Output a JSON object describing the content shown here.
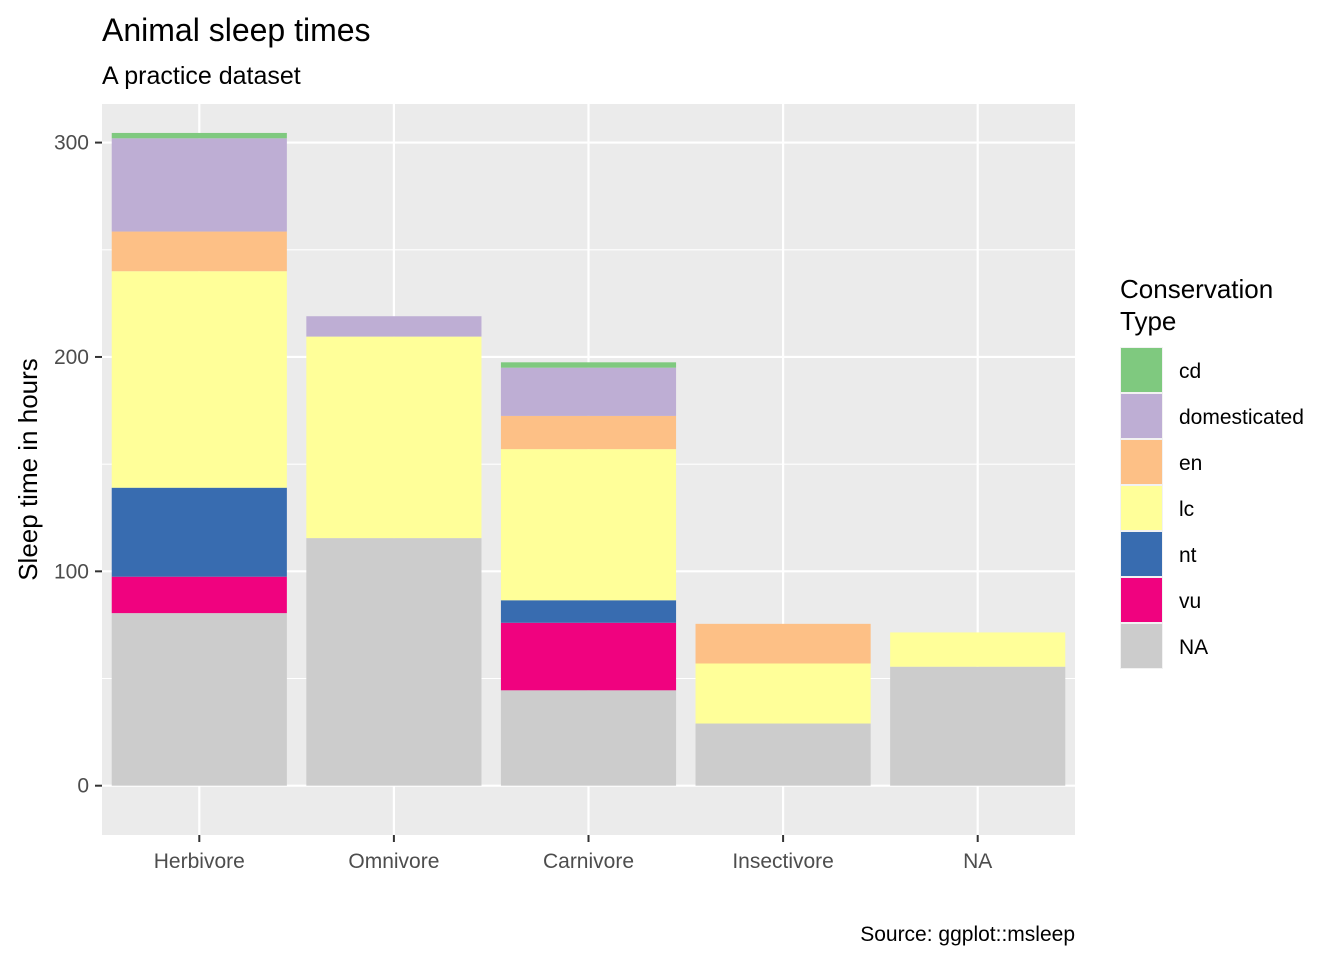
{
  "chart_data": {
    "type": "bar",
    "stacked": true,
    "title": "Animal sleep times",
    "subtitle": "A practice dataset",
    "caption": "Source: ggplot::msleep",
    "xlabel": "",
    "ylabel": "Sleep time in hours",
    "ylim": [
      -23,
      318
    ],
    "yticks": [
      0,
      100,
      200,
      300
    ],
    "grid": true,
    "categories": [
      "Herbivore",
      "Omnivore",
      "Carnivore",
      "Insectivore",
      "NA"
    ],
    "legend": {
      "title_lines": [
        "Conservation",
        "Type"
      ],
      "position": "right"
    },
    "series": [
      {
        "name": "NA",
        "color": "#CCCCCC",
        "values": [
          80.5,
          115.5,
          44.5,
          29,
          55.5
        ]
      },
      {
        "name": "vu",
        "color": "#F0027F",
        "values": [
          17,
          0,
          31.5,
          0,
          0
        ]
      },
      {
        "name": "nt",
        "color": "#386CB0",
        "values": [
          41.5,
          0,
          10.5,
          0,
          0
        ]
      },
      {
        "name": "lc",
        "color": "#FFFF99",
        "values": [
          101,
          94,
          70.5,
          28,
          16
        ]
      },
      {
        "name": "en",
        "color": "#FDC086",
        "values": [
          18.5,
          0,
          15.5,
          18.5,
          0
        ]
      },
      {
        "name": "domesticated",
        "color": "#BEAED4",
        "values": [
          43.5,
          9.5,
          22.5,
          0,
          0
        ]
      },
      {
        "name": "cd",
        "color": "#7FC97F",
        "values": [
          2.5,
          0,
          2.5,
          0,
          0
        ]
      }
    ],
    "legend_order": [
      "cd",
      "domesticated",
      "en",
      "lc",
      "nt",
      "vu",
      "NA"
    ]
  }
}
